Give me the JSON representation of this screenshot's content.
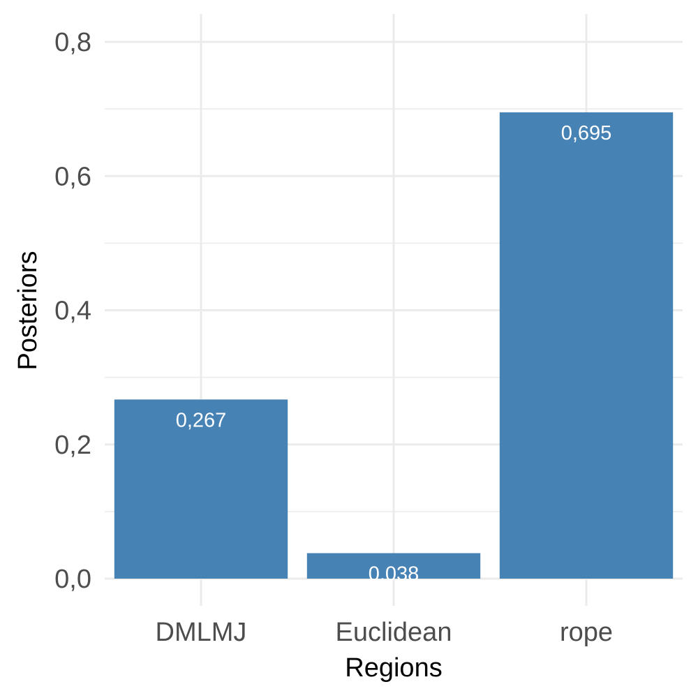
{
  "chart_data": {
    "type": "bar",
    "categories": [
      "DMLMJ",
      "Euclidean",
      "rope"
    ],
    "values": [
      0.267,
      0.038,
      0.695
    ],
    "data_labels": [
      "0,267",
      "0,038",
      "0,695"
    ],
    "title": "",
    "xlabel": "Regions",
    "ylabel": "Posteriors",
    "ylim": [
      0,
      0.8
    ],
    "y_ticks": [
      0,
      0.2,
      0.4,
      0.6,
      0.8
    ],
    "y_tick_labels": [
      "0,0",
      "0,2",
      "0,4",
      "0,6",
      "0,8"
    ],
    "grid": true,
    "legend": "none",
    "bar_color": "#4682B4"
  }
}
